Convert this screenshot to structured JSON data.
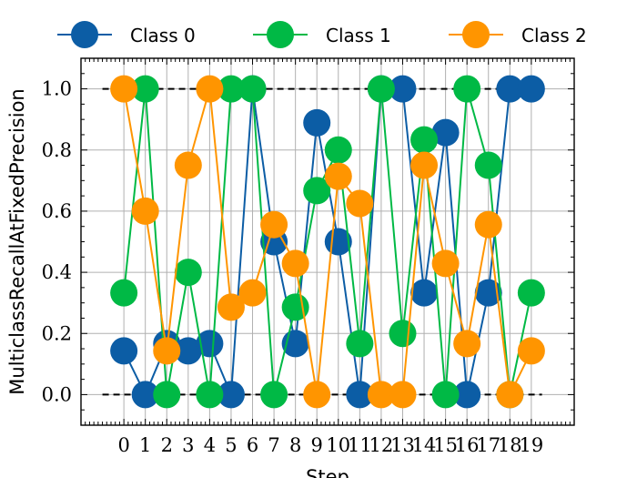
{
  "chart_data": {
    "type": "line",
    "xlabel": "Step",
    "ylabel": "MulticlassRecallAtFixedPrecision",
    "x": [
      0,
      1,
      2,
      3,
      4,
      5,
      6,
      7,
      8,
      9,
      10,
      11,
      12,
      13,
      14,
      15,
      16,
      17,
      18,
      19
    ],
    "xlim": [
      -2,
      21
    ],
    "ylim": [
      -0.1,
      1.1
    ],
    "yticks": [
      0.0,
      0.2,
      0.4,
      0.6,
      0.8,
      1.0
    ],
    "yticklabels": [
      "0.0",
      "0.2",
      "0.4",
      "0.6",
      "0.8",
      "1.0"
    ],
    "xticklabels": [
      "0",
      "1",
      "2",
      "3",
      "4",
      "5",
      "6",
      "7",
      "8",
      "9",
      "10",
      "11",
      "12",
      "13",
      "14",
      "15",
      "16",
      "17",
      "18",
      "19"
    ],
    "grid": true,
    "legend_position": "top, outside plot",
    "reference_lines": [
      0.0,
      1.0
    ],
    "series": [
      {
        "name": "Class 0",
        "color": "#0C5DA5",
        "values": [
          0.143,
          0.0,
          0.167,
          0.143,
          0.167,
          0.0,
          1.0,
          0.5,
          0.167,
          0.889,
          0.5,
          0.0,
          1.0,
          1.0,
          0.333,
          0.857,
          0.0,
          0.333,
          1.0,
          1.0
        ]
      },
      {
        "name": "Class 1",
        "color": "#00B945",
        "values": [
          0.333,
          1.0,
          0.0,
          0.4,
          0.0,
          1.0,
          1.0,
          0.0,
          0.286,
          0.667,
          0.8,
          0.167,
          1.0,
          0.2,
          0.833,
          0.0,
          1.0,
          0.75,
          0.0,
          0.333
        ]
      },
      {
        "name": "Class 2",
        "color": "#FF9500",
        "values": [
          1.0,
          0.6,
          0.143,
          0.75,
          1.0,
          0.286,
          0.333,
          0.556,
          0.429,
          0.0,
          0.714,
          0.625,
          0.0,
          0.0,
          0.75,
          0.429,
          0.167,
          0.556,
          0.0,
          0.143
        ]
      }
    ]
  }
}
